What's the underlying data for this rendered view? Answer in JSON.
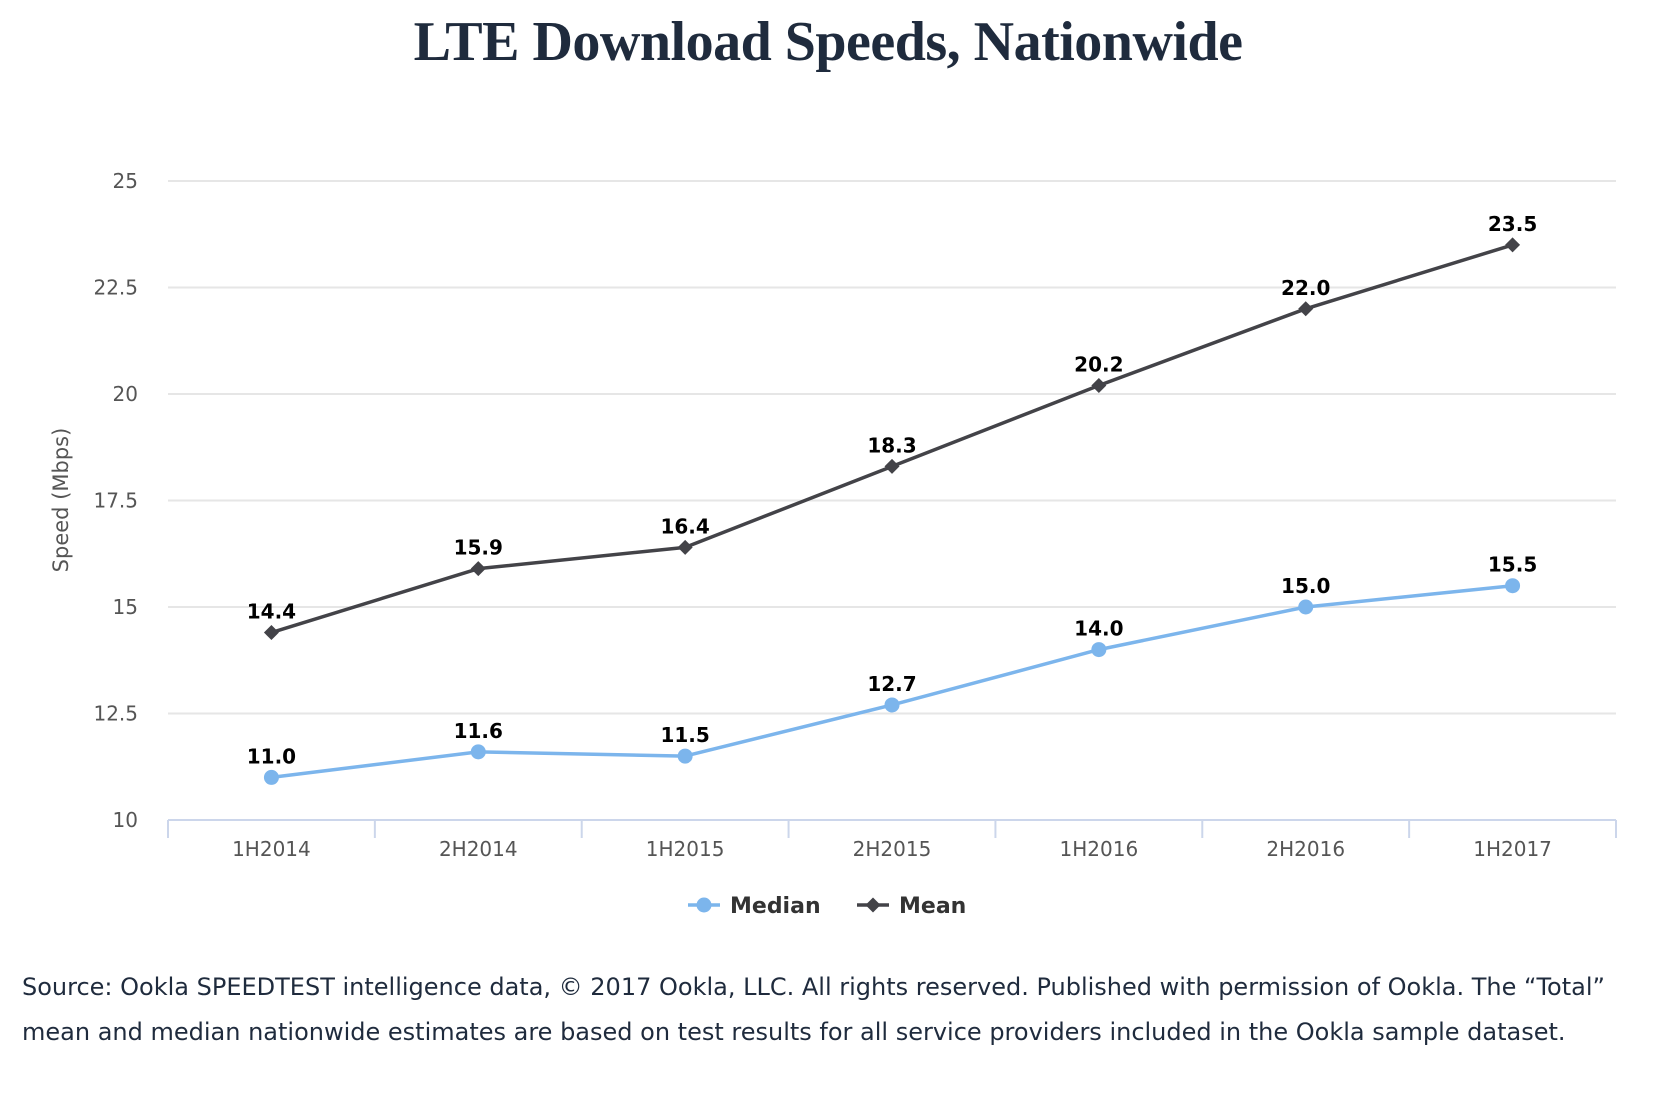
{
  "chart_data": {
    "type": "line",
    "title": "LTE Download Speeds, Nationwide",
    "xlabel": "",
    "ylabel": "Speed (Mbps)",
    "categories": [
      "1H2014",
      "2H2014",
      "1H2015",
      "2H2015",
      "1H2016",
      "2H2016",
      "1H2017"
    ],
    "ylim": [
      10,
      25
    ],
    "yticks": [
      10,
      12.5,
      15,
      17.5,
      20,
      22.5,
      25
    ],
    "ytick_labels": [
      "10",
      "12.5",
      "15",
      "17.5",
      "20",
      "22.5",
      "25"
    ],
    "grid": true,
    "legend_position": "bottom-center",
    "series": [
      {
        "name": "Median",
        "marker": "circle",
        "color": "#7cb5ec",
        "values": [
          11.0,
          11.6,
          11.5,
          12.7,
          14.0,
          15.0,
          15.5
        ],
        "labels": [
          "11.0",
          "11.6",
          "11.5",
          "12.7",
          "14.0",
          "15.0",
          "15.5"
        ]
      },
      {
        "name": "Mean",
        "marker": "diamond",
        "color": "#434348",
        "values": [
          14.4,
          15.9,
          16.4,
          18.3,
          20.2,
          22.0,
          23.5
        ],
        "labels": [
          "14.4",
          "15.9",
          "16.4",
          "18.3",
          "20.2",
          "22.0",
          "23.5"
        ]
      }
    ]
  },
  "source_note": {
    "line1": "Source: Ookla SPEEDTEST intelligence data, © 2017 Ookla, LLC.  All rights reserved.  Published with permission of Ookla.",
    "line2": "The “Total” mean and median nationwide estimates are based on test results for all service providers included in the Ookla sample dataset."
  }
}
